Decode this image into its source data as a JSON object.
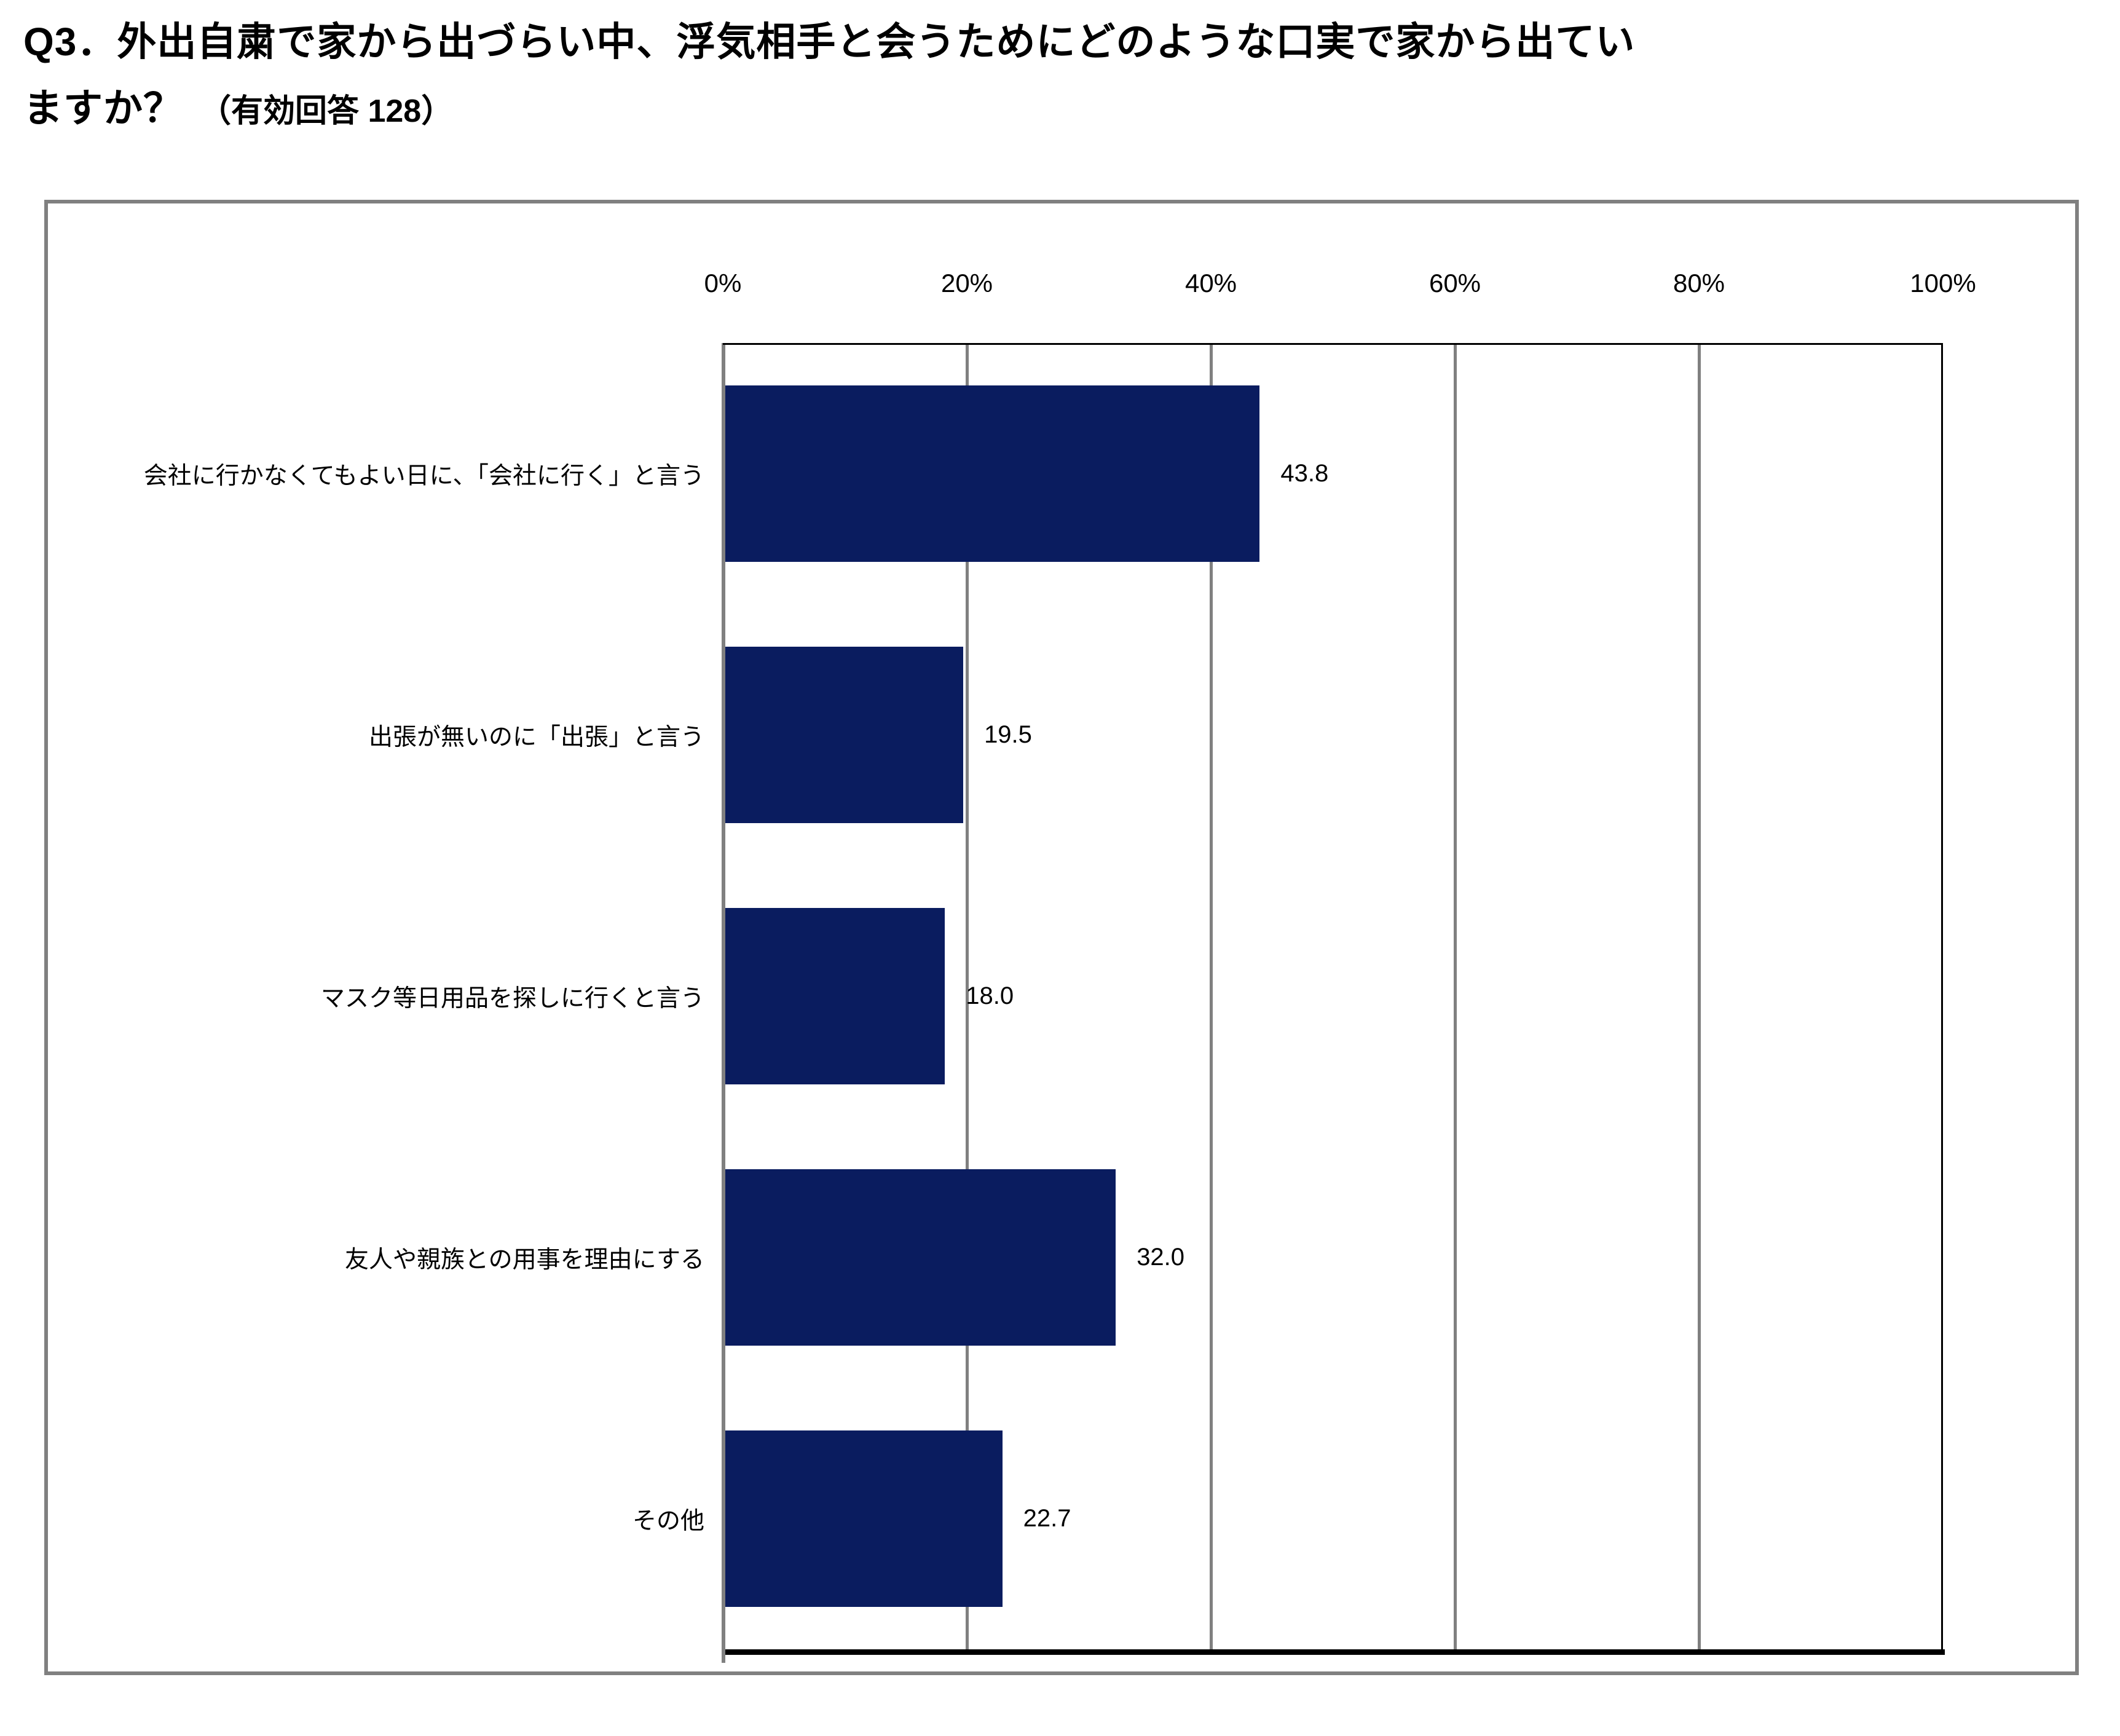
{
  "title": {
    "line1": "Q3．外出自粛で家から出づらい中、浮気相手と会うためにどのような口実で家から出てい",
    "line2_main": "ますか？",
    "line2_note": "（有効回答 128）"
  },
  "chart_data": {
    "type": "bar",
    "orientation": "horizontal",
    "categories": [
      "会社に行かなくてもよい日に、「会社に行く」と言う",
      "出張が無いのに「出張」と言う",
      "マスク等日用品を探しに行くと言う",
      "友人や親族との用事を理由にする",
      "その他"
    ],
    "values": [
      43.8,
      19.5,
      18.0,
      32.0,
      22.7
    ],
    "value_labels": [
      "43.8",
      "19.5",
      "18.0",
      "32.0",
      "22.7"
    ],
    "x_ticks": [
      "0%",
      "20%",
      "40%",
      "60%",
      "80%",
      "100%"
    ],
    "x_tick_values": [
      0,
      20,
      40,
      60,
      80,
      100
    ],
    "xlim": [
      0,
      100
    ],
    "grid": true,
    "legend": false,
    "colors": {
      "bar": "#0A1C5F",
      "gridline": "#808080",
      "zero_axis": "#808080",
      "bottom_axis": "#000000",
      "plot_border": "#000000",
      "frame_border": "#808080",
      "text": "#000000"
    }
  }
}
